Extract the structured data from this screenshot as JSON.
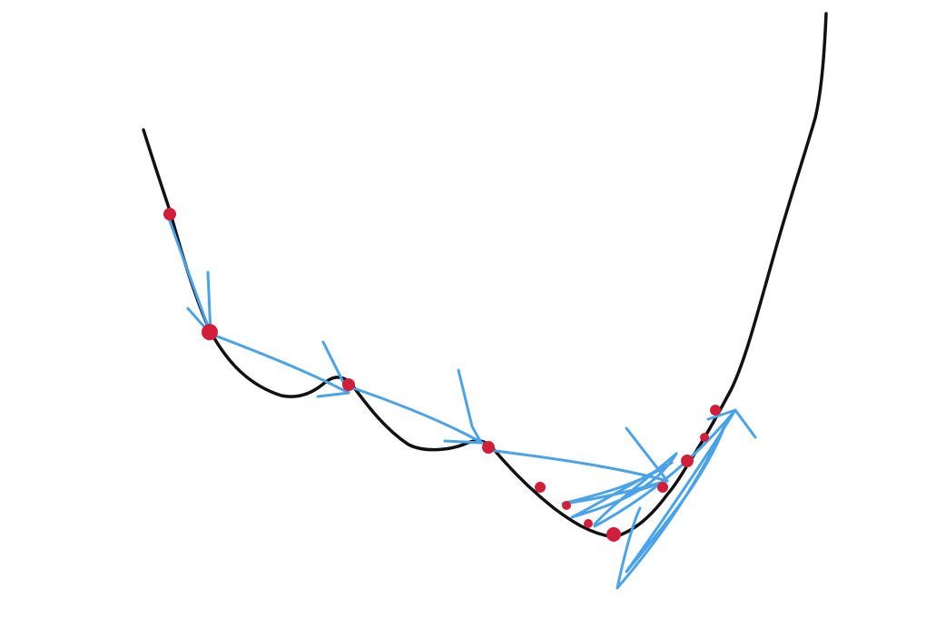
{
  "colors": {
    "background": "#ffffff",
    "loss_curve": "#111111",
    "descent_steps": "#4aa3e8",
    "iterate_points": "#d11f3a"
  }
}
